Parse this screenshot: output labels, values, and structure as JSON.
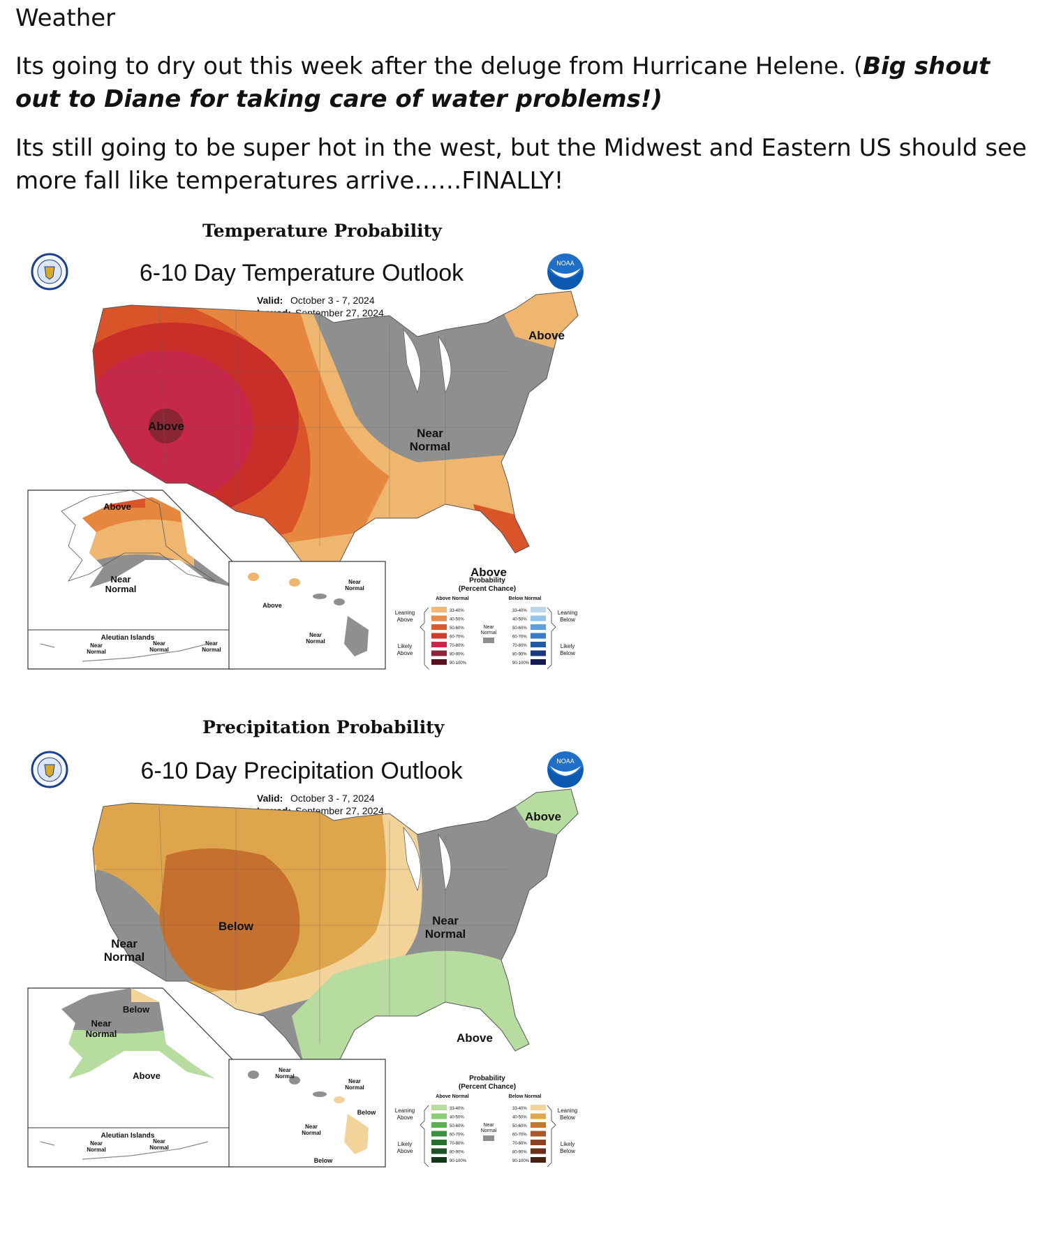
{
  "document": {
    "title": "Weather",
    "para1_text": "Its going to dry out this week after the deluge from Hurricane Helene. (",
    "para1_bold": "Big shout out to Diane for taking care of water problems!)",
    "para2": "Its still going to be super hot in the west, but the Midwest and Eastern US should see more fall like temperatures arrive……FINALLY!"
  },
  "temperature": {
    "caption": "Temperature Probability",
    "title": "6-10 Day Temperature Outlook",
    "valid_label": "Valid:",
    "valid": "October 3 - 7, 2024",
    "issued_label": "Issued:",
    "issued": "September 27, 2024",
    "labels": {
      "above_ne": "Above",
      "near_normal_1": "Near",
      "near_normal_2": "Normal",
      "above_sw": "Above",
      "above_fl": "Above",
      "ak_above": "Above",
      "ak_near_1": "Near",
      "ak_near_2": "Normal",
      "hi_near_1": "Near",
      "hi_near_2": "Normal",
      "hi_above": "Above",
      "hi_near_b1": "Near",
      "hi_near_b2": "Normal",
      "aleutian": "Aleutian Islands",
      "al_near_1": "Near",
      "al_normal_1": "Normal",
      "al_near_2": "Near",
      "al_normal_2": "Normal",
      "al_near_3": "Near",
      "al_normal_3": "Normal"
    },
    "legend": {
      "title_1": "Probability",
      "title_2": "(Percent Chance)",
      "left_head": "Above Normal",
      "right_head": "Below Normal",
      "leaning_l_1": "Leaning",
      "leaning_l_2": "Above",
      "likely_l_1": "Likely",
      "likely_l_2": "Above",
      "leaning_r_1": "Leaning",
      "leaning_r_2": "Below",
      "likely_r_1": "Likely",
      "likely_r_2": "Below",
      "near_1": "Near",
      "near_2": "Normal",
      "bins": [
        "33-40%",
        "40-50%",
        "50-60%",
        "60-70%",
        "70-80%",
        "80-90%",
        "90-100%"
      ],
      "left_colors": [
        "#f0b97a",
        "#e88c4a",
        "#dc5a2e",
        "#d03c2c",
        "#c22a4a",
        "#8e2438",
        "#5a1020"
      ],
      "right_colors": [
        "#bcd6ee",
        "#94c2e8",
        "#5fa0dc",
        "#3a7cc8",
        "#1f5aa8",
        "#1a3a80",
        "#141a52"
      ]
    }
  },
  "precipitation": {
    "caption": "Precipitation Probability",
    "title": "6-10 Day Precipitation Outlook",
    "valid_label": "Valid:",
    "valid": "October 3 - 7, 2024",
    "issued_label": "Issued:",
    "issued": "September 27, 2024",
    "labels": {
      "above_ne": "Above",
      "near_normal_1": "Near",
      "near_normal_2": "Normal",
      "below": "Below",
      "west_near_1": "Near",
      "west_near_2": "Normal",
      "above_se": "Above",
      "ak_below": "Below",
      "ak_near_1": "Near",
      "ak_near_2": "Normal",
      "ak_above": "Above",
      "hi_near_1": "Near",
      "hi_near_2": "Normal",
      "hi_near_3": "Near",
      "hi_near_4": "Normal",
      "hi_below": "Below",
      "hi_near_5": "Near",
      "hi_near_6": "Normal",
      "hi_below_2": "Below",
      "aleutian": "Aleutian Islands",
      "al_near_1": "Near",
      "al_normal_1": "Normal",
      "al_near_2": "Near",
      "al_normal_2": "Normal"
    },
    "legend": {
      "title_1": "Probability",
      "title_2": "(Percent Chance)",
      "left_head": "Above Normal",
      "right_head": "Below Normal",
      "leaning_l_1": "Leaning",
      "leaning_l_2": "Above",
      "likely_l_1": "Likely",
      "likely_l_2": "Above",
      "leaning_r_1": "Leaning",
      "leaning_r_2": "Below",
      "likely_r_1": "Likely",
      "likely_r_2": "Below",
      "near_1": "Near",
      "near_2": "Normal",
      "bins": [
        "33-40%",
        "40-50%",
        "50-60%",
        "60-70%",
        "70-80%",
        "80-90%",
        "90-100%"
      ],
      "left_colors": [
        "#b6dca0",
        "#8ccc74",
        "#5fb04e",
        "#3c8e3e",
        "#2a6e30",
        "#1e5224",
        "#123818"
      ],
      "right_colors": [
        "#f2d49a",
        "#e0a84e",
        "#c8782e",
        "#a8582a",
        "#8a4424",
        "#6a3018",
        "#4a200e"
      ]
    }
  }
}
